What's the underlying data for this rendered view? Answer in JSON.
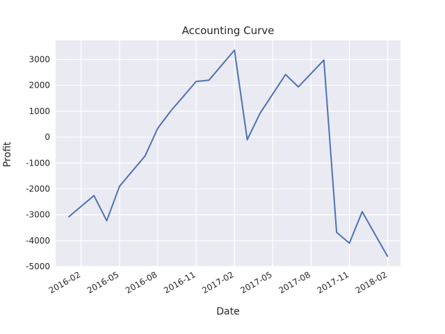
{
  "chart_data": {
    "type": "line",
    "title": "Accounting Curve",
    "x_label": "Date",
    "y_label": "Profit",
    "x": [
      "2016-01",
      "2016-03",
      "2016-04",
      "2016-05",
      "2016-07",
      "2016-08",
      "2016-09",
      "2016-11",
      "2016-12",
      "2017-02",
      "2017-03",
      "2017-04",
      "2017-06",
      "2017-07",
      "2017-09",
      "2017-10",
      "2017-11",
      "2017-12",
      "2018-02"
    ],
    "series": [
      {
        "name": "Profit",
        "color": "#4c72b0",
        "values": [
          -3090,
          -2260,
          -3230,
          -1900,
          -730,
          350,
          1000,
          2150,
          2200,
          3360,
          -100,
          920,
          2420,
          1940,
          2980,
          -3680,
          -4100,
          -2880,
          -4620
        ]
      }
    ],
    "xlim": [
      "2015-12",
      "2018-03"
    ],
    "xticks": [
      "2016-02",
      "2016-05",
      "2016-08",
      "2016-11",
      "2017-02",
      "2017-05",
      "2017-08",
      "2017-11",
      "2018-02"
    ],
    "ylim": [
      -5000,
      3740
    ],
    "yticks": [
      -5000,
      -4000,
      -3000,
      -2000,
      -1000,
      0,
      1000,
      2000,
      3000
    ],
    "grid": true,
    "background": "#eaeaf2"
  }
}
